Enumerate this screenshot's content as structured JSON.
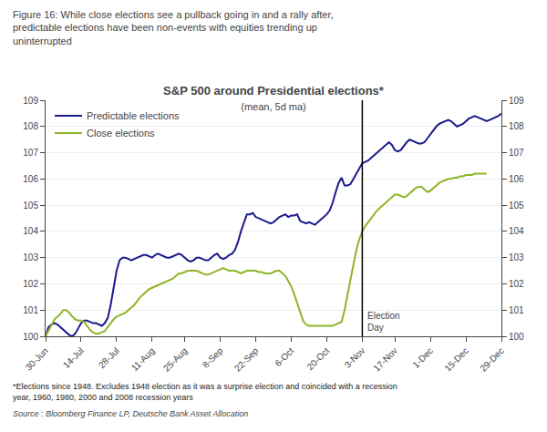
{
  "chart_data": {
    "type": "line",
    "title": "S&P 500 around Presidential elections*",
    "subtitle": "(mean, 5d ma)",
    "header": "Figure 16: While close elections see a pullback going in and a rally after,\npredictable elections have been non-events with equities trending up\nuninterrupted",
    "footnote": "*Elections since 1948. Excludes 1948 election as it was a surprise election and coincided with a recession\nyear, 1960, 1980, 2000 and 2008 recession years",
    "source": "Source : Bloomberg Finance LP, Deutsche Bank Asset Allocation",
    "categories": [
      "30-Jun",
      null,
      null,
      null,
      null,
      null,
      null,
      null,
      null,
      null,
      null,
      null,
      "14-Jul",
      null,
      null,
      null,
      null,
      null,
      null,
      null,
      null,
      null,
      null,
      null,
      "28-Jul",
      null,
      null,
      null,
      null,
      null,
      null,
      null,
      null,
      null,
      null,
      null,
      "11-Aug",
      null,
      null,
      null,
      null,
      null,
      null,
      null,
      null,
      null,
      null,
      "25-Aug",
      null,
      null,
      null,
      null,
      null,
      null,
      null,
      null,
      null,
      null,
      null,
      "8-Sep",
      null,
      null,
      null,
      null,
      null,
      null,
      null,
      null,
      null,
      null,
      null,
      "22-Sep",
      null,
      null,
      null,
      null,
      null,
      null,
      null,
      null,
      null,
      null,
      null,
      "6-Oct",
      null,
      null,
      null,
      null,
      null,
      null,
      null,
      null,
      null,
      null,
      null,
      "20-Oct",
      null,
      null,
      null,
      null,
      null,
      null,
      null,
      null,
      null,
      null,
      null,
      "3-Nov",
      null,
      null,
      null,
      null,
      null,
      null,
      null,
      null,
      null,
      null,
      "17-Nov",
      null,
      null,
      null,
      null,
      null,
      null,
      null,
      null,
      null,
      null,
      null,
      "1-Dec",
      null,
      null,
      null,
      null,
      null,
      null,
      null,
      null,
      null,
      null,
      null,
      "15-Dec",
      null,
      null,
      null,
      null,
      null,
      null,
      null,
      null,
      null,
      null,
      null,
      "29-Dec"
    ],
    "series": [
      {
        "name": "Predictable elections",
        "color": "#1a1a8c",
        "values": [
          100.0,
          100.35,
          100.45,
          100.5,
          100.45,
          100.35,
          100.25,
          100.15,
          100.05,
          100.0,
          100.1,
          100.3,
          100.5,
          100.6,
          100.6,
          100.55,
          100.5,
          100.5,
          100.45,
          100.4,
          100.5,
          100.7,
          101.2,
          101.8,
          102.5,
          102.9,
          103.0,
          103.0,
          102.95,
          102.9,
          102.95,
          103.0,
          103.05,
          103.1,
          103.1,
          103.05,
          103.0,
          103.1,
          103.15,
          103.1,
          103.05,
          103.0,
          103.0,
          103.05,
          103.1,
          103.15,
          103.1,
          103.0,
          102.9,
          102.85,
          102.9,
          103.0,
          103.0,
          102.95,
          102.9,
          102.9,
          103.0,
          103.1,
          103.15,
          103.0,
          102.95,
          103.0,
          103.1,
          103.15,
          103.3,
          103.6,
          104.0,
          104.35,
          104.65,
          104.65,
          104.7,
          104.55,
          104.5,
          104.45,
          104.4,
          104.35,
          104.3,
          104.35,
          104.45,
          104.55,
          104.6,
          104.65,
          104.55,
          104.6,
          104.6,
          104.65,
          104.4,
          104.35,
          104.3,
          104.35,
          104.3,
          104.25,
          104.35,
          104.45,
          104.55,
          104.65,
          104.8,
          105.1,
          105.5,
          105.85,
          106.05,
          105.75,
          105.75,
          105.8,
          106.0,
          106.2,
          106.4,
          106.6,
          106.65,
          106.7,
          106.8,
          106.9,
          107.0,
          107.1,
          107.2,
          107.3,
          107.4,
          107.3,
          107.1,
          107.05,
          107.1,
          107.25,
          107.4,
          107.5,
          107.45,
          107.4,
          107.35,
          107.35,
          107.4,
          107.55,
          107.7,
          107.85,
          108.0,
          108.1,
          108.15,
          108.2,
          108.25,
          108.2,
          108.1,
          108.0,
          108.05,
          108.1,
          108.2,
          108.3,
          108.35,
          108.4,
          108.35,
          108.3,
          108.25,
          108.2,
          108.25,
          108.3,
          108.35,
          108.4,
          108.5
        ]
      },
      {
        "name": "Close elections",
        "color": "#8db529",
        "values": [
          100.0,
          100.2,
          100.45,
          100.65,
          100.75,
          100.85,
          101.0,
          101.0,
          100.9,
          100.75,
          100.65,
          100.6,
          100.6,
          100.55,
          100.4,
          100.25,
          100.15,
          100.1,
          100.1,
          100.15,
          100.2,
          100.35,
          100.5,
          100.65,
          100.75,
          100.8,
          100.85,
          100.9,
          101.0,
          101.1,
          101.2,
          101.35,
          101.5,
          101.6,
          101.7,
          101.8,
          101.85,
          101.9,
          101.95,
          102.0,
          102.05,
          102.1,
          102.15,
          102.2,
          102.3,
          102.4,
          102.4,
          102.45,
          102.5,
          102.5,
          102.5,
          102.5,
          102.45,
          102.4,
          102.35,
          102.35,
          102.4,
          102.45,
          102.5,
          102.55,
          102.6,
          102.55,
          102.5,
          102.5,
          102.5,
          102.45,
          102.4,
          102.45,
          102.5,
          102.5,
          102.5,
          102.5,
          102.45,
          102.45,
          102.4,
          102.4,
          102.4,
          102.45,
          102.5,
          102.5,
          102.4,
          102.3,
          102.1,
          101.9,
          101.6,
          101.25,
          100.9,
          100.6,
          100.45,
          100.4,
          100.4,
          100.4,
          100.4,
          100.4,
          100.4,
          100.4,
          100.4,
          100.4,
          100.45,
          100.5,
          100.55,
          101.0,
          101.6,
          102.2,
          102.8,
          103.3,
          103.7,
          104.0,
          104.2,
          104.35,
          104.5,
          104.65,
          104.8,
          104.9,
          105.0,
          105.1,
          105.2,
          105.3,
          105.4,
          105.4,
          105.35,
          105.3,
          105.35,
          105.45,
          105.55,
          105.65,
          105.7,
          105.7,
          105.6,
          105.5,
          105.55,
          105.65,
          105.75,
          105.85,
          105.9,
          105.95,
          106.0,
          106.0,
          106.05,
          106.05,
          106.1,
          106.1,
          106.15,
          106.15,
          106.15,
          106.2,
          106.2,
          106.2,
          106.2,
          106.2,
          null,
          null,
          null,
          null,
          null
        ]
      }
    ],
    "annotations": [
      {
        "text": "Election\nDay",
        "x": "3-Nov"
      }
    ],
    "ylim": [
      100,
      109
    ],
    "yticks": [
      100,
      101,
      102,
      103,
      104,
      105,
      106,
      107,
      108,
      109
    ],
    "y2lim": [
      100,
      109
    ],
    "y2ticks": [
      100,
      101,
      102,
      103,
      104,
      105,
      106,
      107,
      108,
      109
    ],
    "grid": true,
    "legend": "upper left"
  }
}
